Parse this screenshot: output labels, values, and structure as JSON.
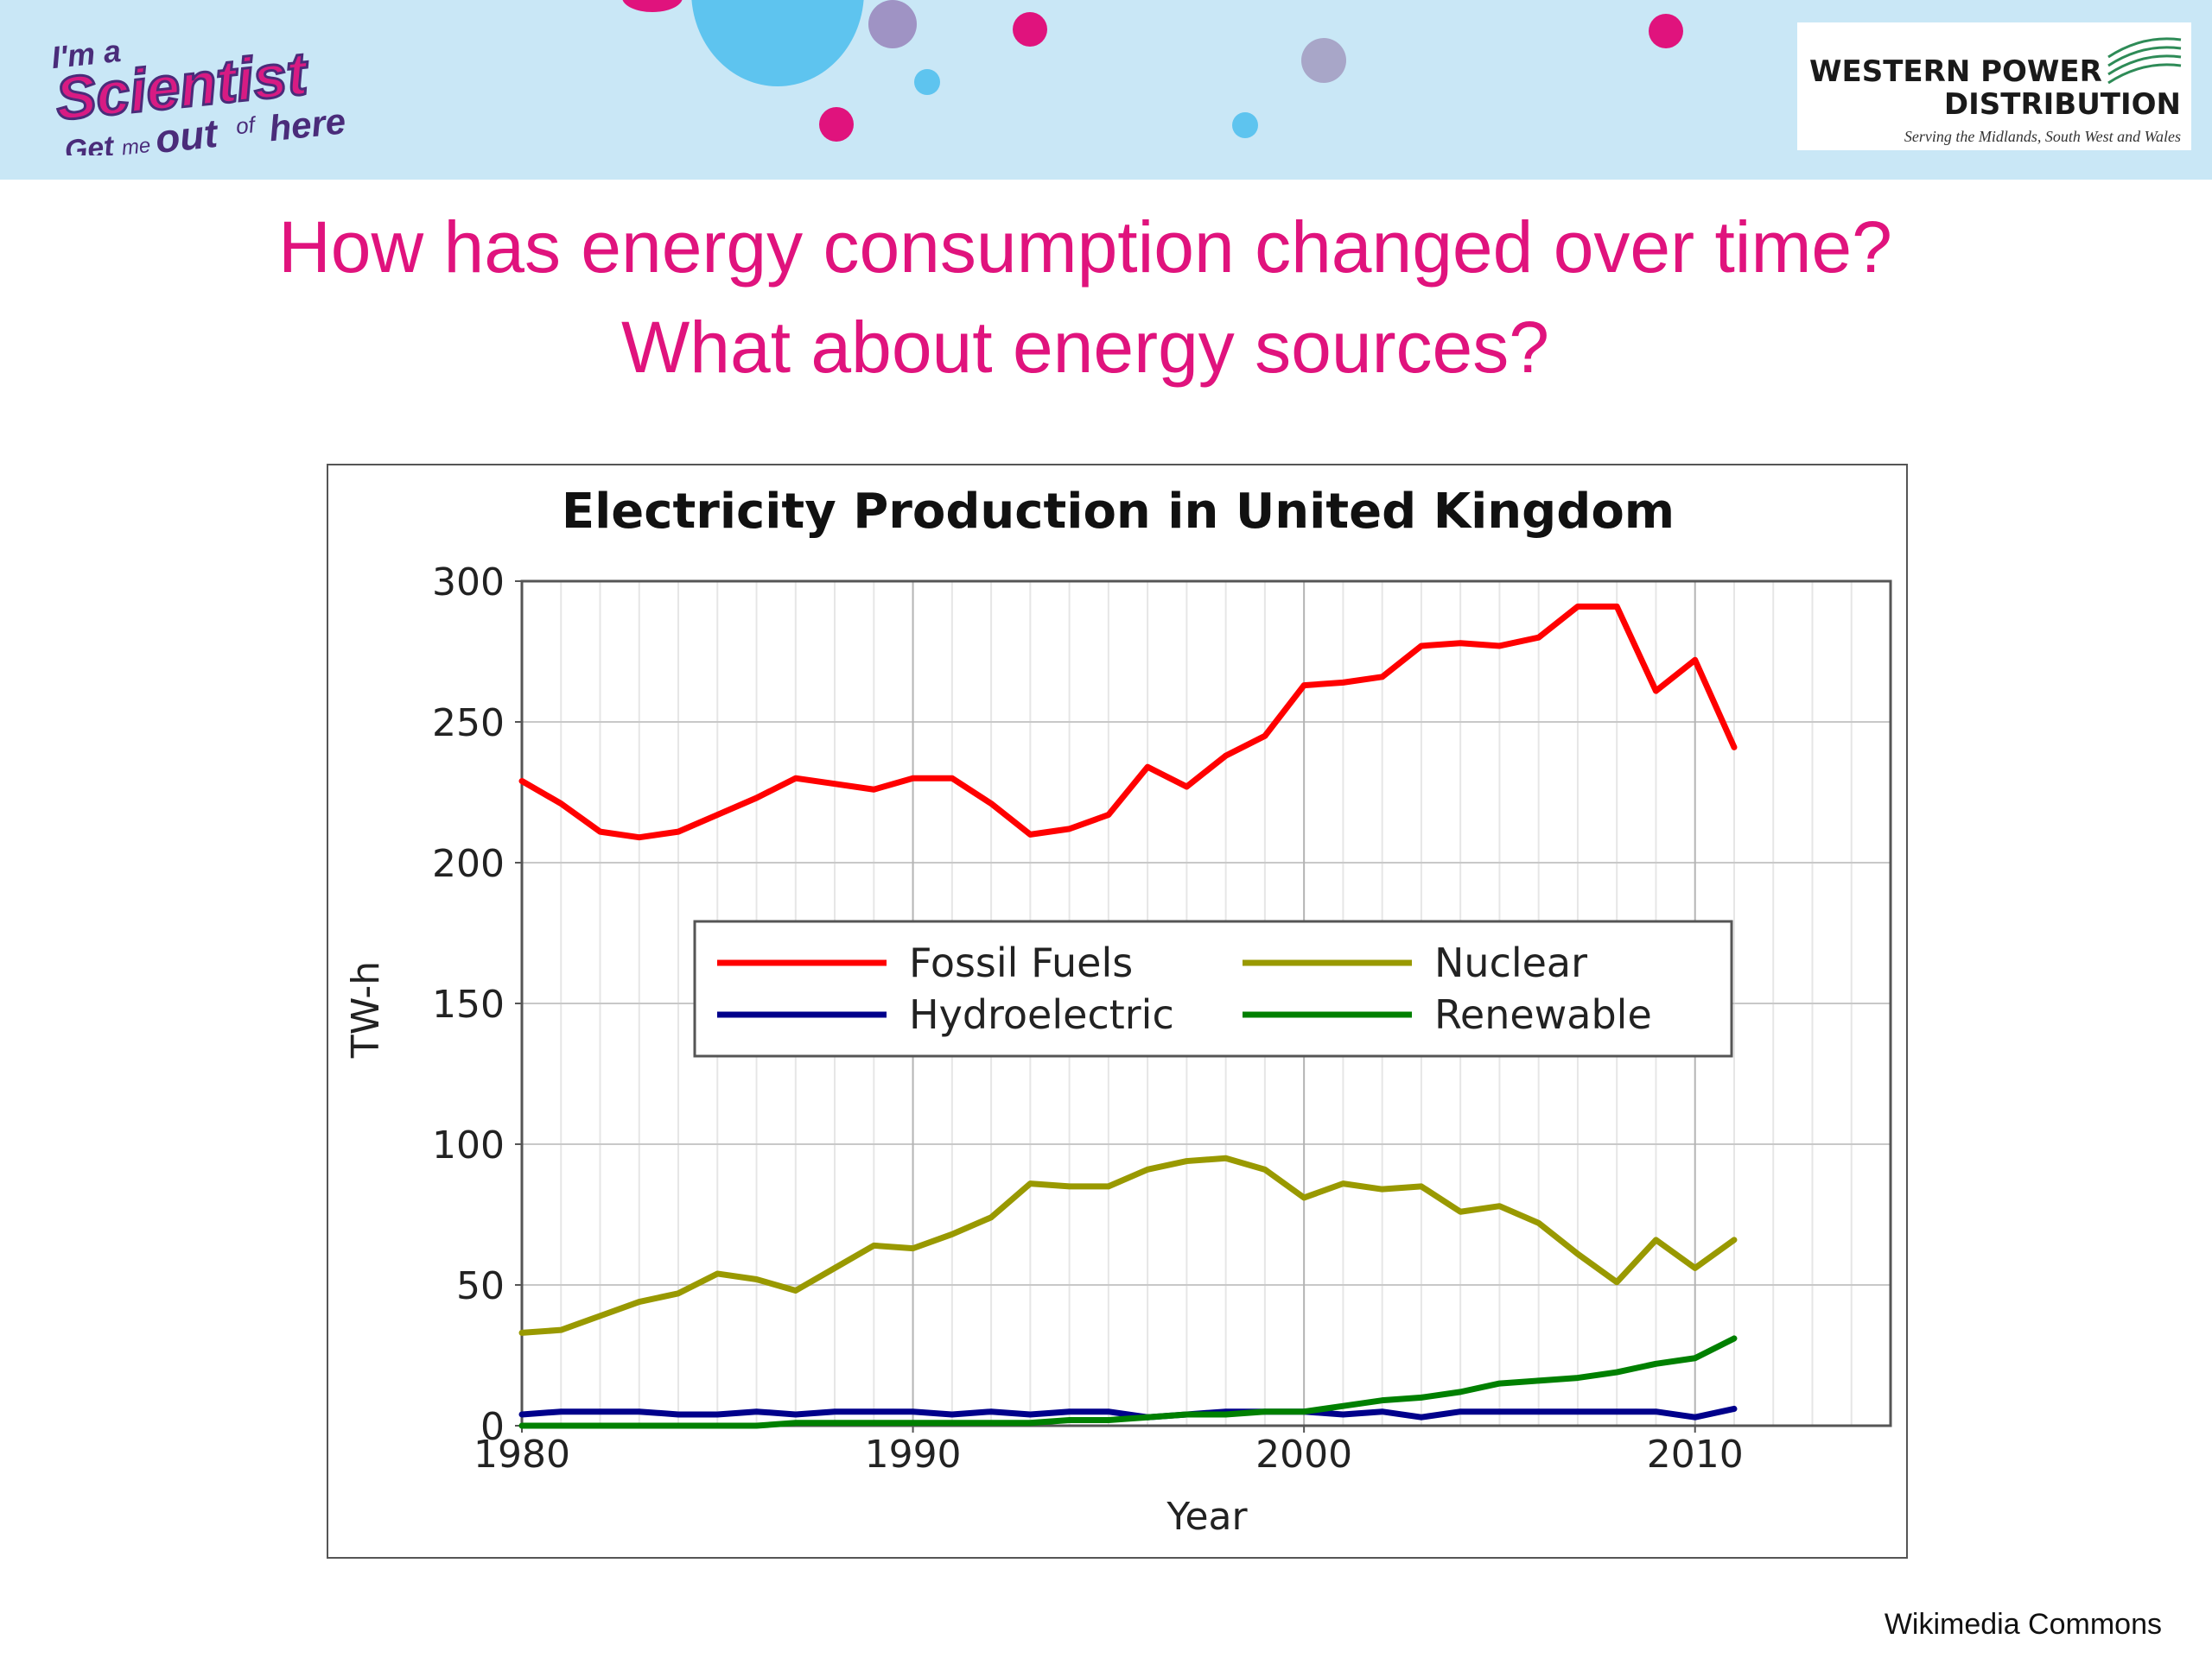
{
  "header": {
    "left_logo": {
      "icon": "im-a-scientist-logo",
      "line1": "I'm a",
      "line2": "Scientist",
      "line3_a": "Get",
      "line3_b": "me",
      "line3_c": "out",
      "line3_d": "of",
      "line3_e": "here",
      "colors": {
        "magenta": "#d81b83",
        "purple": "#4a2c7a"
      }
    },
    "right_logo": {
      "icon": "western-power-distribution-logo",
      "line1": "WESTERN POWER",
      "line2": "DISTRIBUTION",
      "tagline": "Serving the Midlands, South West and Wales",
      "accent": "#2e8b57"
    },
    "banner_color": "#c9e7f6"
  },
  "slide": {
    "title_line1": "How has energy consumption changed over time?",
    "title_line2": "What about energy sources?",
    "title_color": "#e0137d",
    "credit": "Wikimedia Commons"
  },
  "chart_data": {
    "type": "line",
    "title": "Electricity Production in United Kingdom",
    "xlabel": "Year",
    "ylabel": "TW-h",
    "xlim": [
      1980,
      2015
    ],
    "ylim": [
      0,
      300
    ],
    "xticks": [
      1980,
      1990,
      2000,
      2010
    ],
    "yticks": [
      0,
      50,
      100,
      150,
      200,
      250,
      300
    ],
    "grid": true,
    "legend_position": "center",
    "x": [
      1980,
      1981,
      1982,
      1983,
      1984,
      1985,
      1986,
      1987,
      1988,
      1989,
      1990,
      1991,
      1992,
      1993,
      1994,
      1995,
      1996,
      1997,
      1998,
      1999,
      2000,
      2001,
      2002,
      2003,
      2004,
      2005,
      2006,
      2007,
      2008,
      2009,
      2010,
      2011
    ],
    "series": [
      {
        "name": "Fossil Fuels",
        "color": "#ff0000",
        "values": [
          229,
          221,
          211,
          209,
          211,
          217,
          223,
          230,
          228,
          226,
          230,
          230,
          221,
          210,
          212,
          217,
          234,
          227,
          238,
          245,
          263,
          264,
          266,
          277,
          278,
          277,
          280,
          291,
          291,
          261,
          272,
          241
        ]
      },
      {
        "name": "Nuclear",
        "color": "#999900",
        "values": [
          33,
          34,
          39,
          44,
          47,
          54,
          52,
          48,
          56,
          64,
          63,
          68,
          74,
          86,
          85,
          85,
          91,
          94,
          95,
          91,
          81,
          86,
          84,
          85,
          76,
          78,
          72,
          61,
          51,
          66,
          56,
          66
        ]
      },
      {
        "name": "Hydroelectric",
        "color": "#00008b",
        "values": [
          4,
          5,
          5,
          5,
          4,
          4,
          5,
          4,
          5,
          5,
          5,
          4,
          5,
          4,
          5,
          5,
          3,
          4,
          5,
          5,
          5,
          4,
          5,
          3,
          5,
          5,
          5,
          5,
          5,
          5,
          3,
          6
        ]
      },
      {
        "name": "Renewable",
        "color": "#008000",
        "values": [
          0,
          0,
          0,
          0,
          0,
          0,
          0,
          1,
          1,
          1,
          1,
          1,
          1,
          1,
          2,
          2,
          3,
          4,
          4,
          5,
          5,
          7,
          9,
          10,
          12,
          15,
          16,
          17,
          19,
          22,
          24,
          31
        ]
      }
    ]
  }
}
